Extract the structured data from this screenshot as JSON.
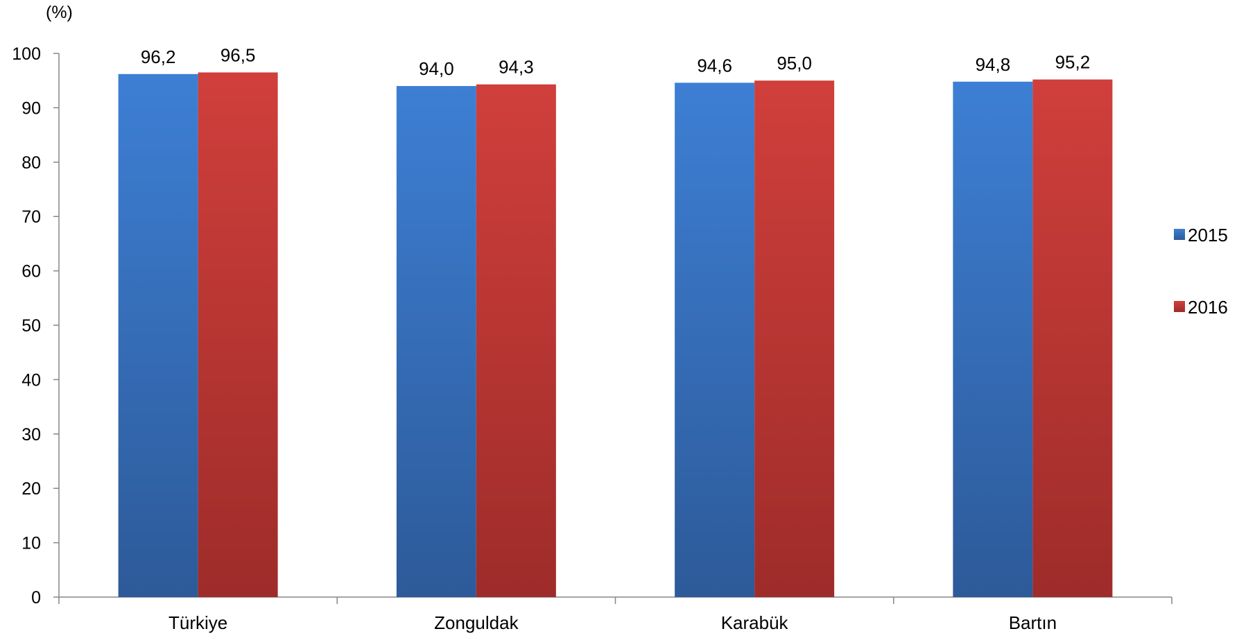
{
  "chart_data": {
    "type": "bar",
    "title": "",
    "xlabel": "",
    "ylabel": "(%)",
    "categories": [
      "Türkiye",
      "Zonguldak",
      "Karabük",
      "Bartın"
    ],
    "series": [
      {
        "name": "2015",
        "values": [
          96.2,
          94.0,
          94.6,
          94.8
        ],
        "labels": [
          "96,2",
          "94,0",
          "94,6",
          "94,8"
        ],
        "color": "#3a78c9"
      },
      {
        "name": "2016",
        "values": [
          96.5,
          94.3,
          95.0,
          95.2
        ],
        "labels": [
          "96,5",
          "94,3",
          "95,0",
          "95,2"
        ],
        "color": "#c73b38"
      }
    ],
    "ylim": [
      0,
      100
    ],
    "yticks": [
      "0",
      "10",
      "20",
      "30",
      "40",
      "50",
      "60",
      "70",
      "80",
      "90",
      "100"
    ],
    "grid": false,
    "legend_position": "right"
  }
}
